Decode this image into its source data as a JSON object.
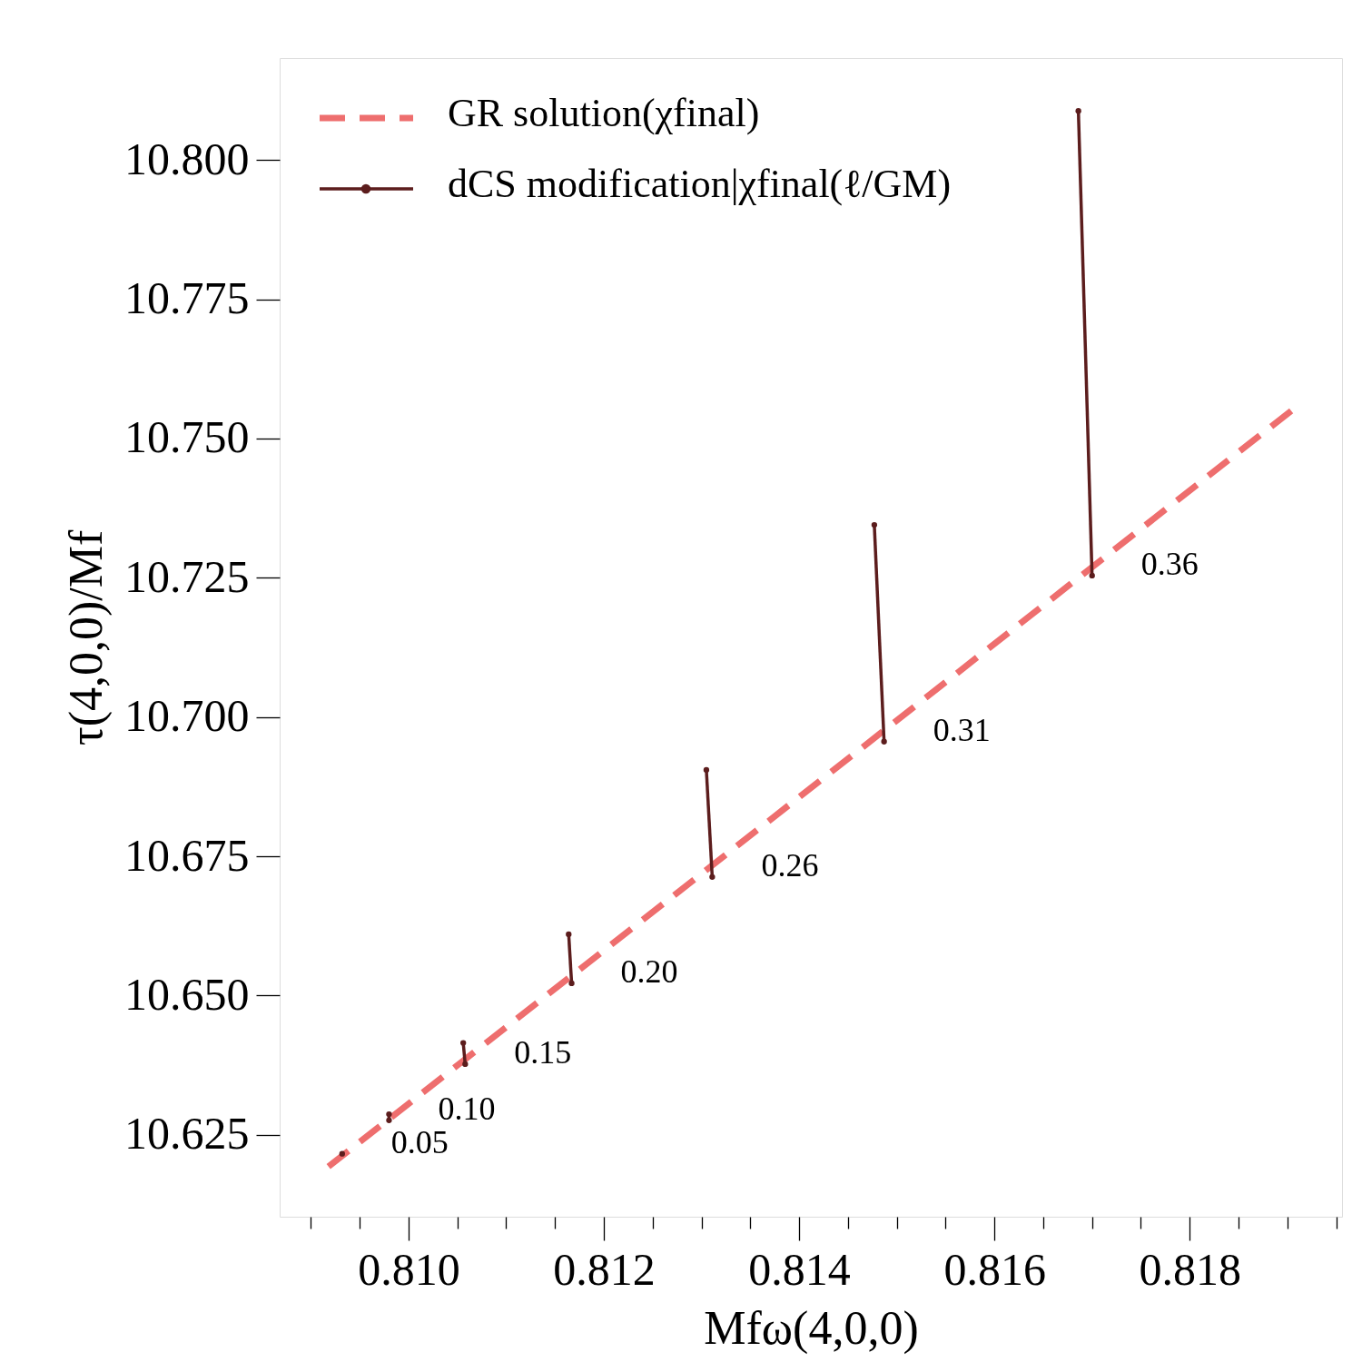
{
  "chart_data": {
    "type": "line",
    "xlabel": "Mfω(4,0,0)",
    "ylabel": "τ(4,0,0)/Mf",
    "xlim": [
      0.80868,
      0.81956
    ],
    "ylim": [
      10.6103,
      10.8183
    ],
    "xticks": [
      {
        "value": 0.809,
        "label": null
      },
      {
        "value": 0.8095,
        "label": null
      },
      {
        "value": 0.81,
        "label": "0.810"
      },
      {
        "value": 0.8105,
        "label": null
      },
      {
        "value": 0.811,
        "label": null
      },
      {
        "value": 0.8115,
        "label": null
      },
      {
        "value": 0.812,
        "label": "0.812"
      },
      {
        "value": 0.8125,
        "label": null
      },
      {
        "value": 0.813,
        "label": null
      },
      {
        "value": 0.8135,
        "label": null
      },
      {
        "value": 0.814,
        "label": "0.814"
      },
      {
        "value": 0.8145,
        "label": null
      },
      {
        "value": 0.815,
        "label": null
      },
      {
        "value": 0.8155,
        "label": null
      },
      {
        "value": 0.816,
        "label": "0.816"
      },
      {
        "value": 0.8165,
        "label": null
      },
      {
        "value": 0.817,
        "label": null
      },
      {
        "value": 0.8175,
        "label": null
      },
      {
        "value": 0.818,
        "label": "0.818"
      },
      {
        "value": 0.8185,
        "label": null
      },
      {
        "value": 0.819,
        "label": null
      },
      {
        "value": 0.8195,
        "label": null
      }
    ],
    "yticks": [
      10.625,
      {
        "value": 10.65,
        "label": "10.650"
      },
      10.675,
      {
        "value": 10.7,
        "label": "10.700"
      },
      10.725,
      {
        "value": 10.75,
        "label": "10.750"
      },
      10.775,
      {
        "value": 10.8,
        "label": "10.800"
      }
    ],
    "legend": "top left",
    "series": [
      {
        "name": "GR solution(χfinal)",
        "color": "#ee6e6e",
        "line_style": "dashed",
        "marker": "none",
        "x": [
          0.80918,
          0.81907
        ],
        "values": [
          10.6193,
          10.7554
        ]
      },
      {
        "name": "dCS modification|χfinal(ℓ/GM)",
        "color": "#5c1d1d",
        "line_style": "solid",
        "marker": "circle",
        "x": [
          0.80932
        ],
        "values": [
          10.6216
        ]
      },
      {
        "color": "#5c1d1d",
        "line_style": "solid",
        "marker": "circle",
        "x": [
          0.8098,
          0.8098
        ],
        "values": [
          10.6287,
          10.6276
        ]
      },
      {
        "color": "#5c1d1d",
        "line_style": "solid",
        "marker": "circle",
        "x": [
          0.81056,
          0.81058
        ],
        "values": [
          10.6415,
          10.6377
        ]
      },
      {
        "color": "#5c1d1d",
        "line_style": "solid",
        "marker": "circle",
        "x": [
          0.81164,
          0.81167
        ],
        "values": [
          10.661,
          10.6522
        ]
      },
      {
        "color": "#5c1d1d",
        "line_style": "solid",
        "marker": "circle",
        "x": [
          0.81305,
          0.81311
        ],
        "values": [
          10.6905,
          10.6713
        ]
      },
      {
        "color": "#5c1d1d",
        "line_style": "solid",
        "marker": "circle",
        "x": [
          0.81477,
          0.81487
        ],
        "values": [
          10.7345,
          10.6956
        ]
      },
      {
        "color": "#5c1d1d",
        "line_style": "solid",
        "marker": "circle",
        "x": [
          0.81686,
          0.817
        ],
        "values": [
          10.8088,
          10.7254
        ]
      }
    ],
    "annotations": [
      {
        "text": "0.05",
        "x": 0.80932,
        "y": 10.6216
      },
      {
        "text": "0.10",
        "x": 0.8098,
        "y": 10.6276
      },
      {
        "text": "0.15",
        "x": 0.81058,
        "y": 10.6377
      },
      {
        "text": "0.20",
        "x": 0.81167,
        "y": 10.6522
      },
      {
        "text": "0.26",
        "x": 0.81311,
        "y": 10.6713
      },
      {
        "text": "0.31",
        "x": 0.81487,
        "y": 10.6956
      },
      {
        "text": "0.36",
        "x": 0.817,
        "y": 10.7254
      }
    ]
  }
}
